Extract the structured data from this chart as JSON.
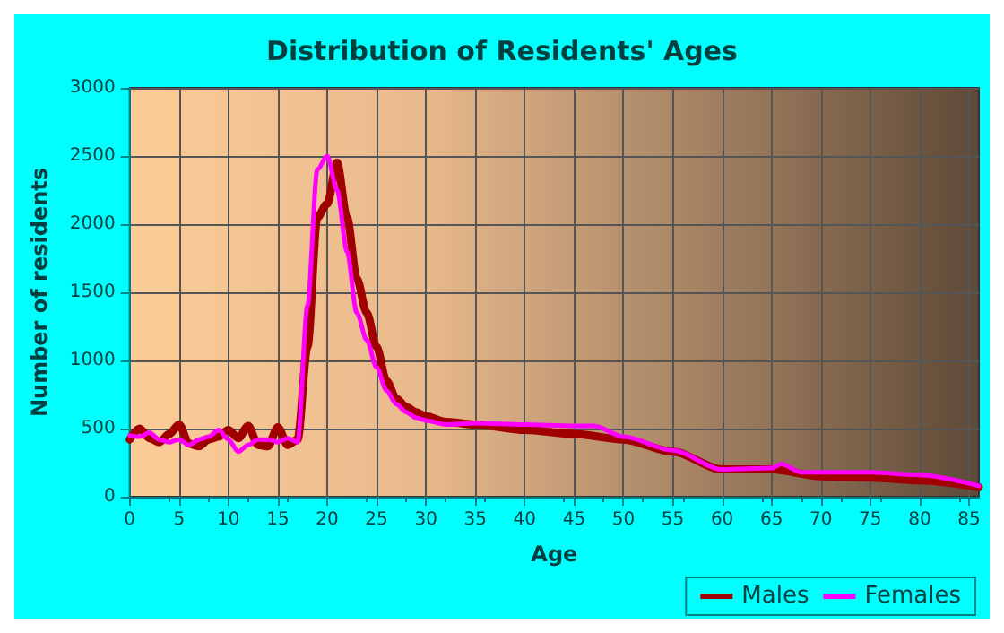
{
  "chart_data": {
    "type": "line",
    "title": "Distribution of Residents' Ages",
    "xlabel": "Age",
    "ylabel": "Number of residents",
    "xlim": [
      0,
      86
    ],
    "xticks": [
      0,
      5,
      10,
      15,
      20,
      25,
      30,
      35,
      40,
      45,
      50,
      55,
      60,
      65,
      70,
      75,
      80,
      85
    ],
    "ylim": [
      0,
      3000
    ],
    "yticks": [
      0,
      500,
      1000,
      1500,
      2000,
      2500,
      3000
    ],
    "grid": true,
    "legend": "bottom right",
    "marker": "none",
    "line_style": "solid",
    "series": [
      {
        "name": "Males",
        "color": "#a00000",
        "x": [
          0,
          1,
          2,
          3,
          4,
          5,
          6,
          7,
          8,
          9,
          10,
          11,
          12,
          13,
          14,
          15,
          16,
          17,
          18,
          19,
          20,
          21,
          22,
          23,
          24,
          25,
          26,
          27,
          28,
          29,
          30,
          32,
          35,
          40,
          45,
          50,
          55,
          60,
          65,
          70,
          75,
          80,
          86
        ],
        "values": [
          420,
          500,
          430,
          400,
          460,
          530,
          390,
          370,
          420,
          440,
          490,
          430,
          520,
          380,
          370,
          510,
          380,
          420,
          1100,
          2050,
          2150,
          2450,
          2050,
          1600,
          1350,
          1100,
          850,
          720,
          660,
          620,
          590,
          550,
          530,
          490,
          460,
          420,
          330,
          200,
          200,
          150,
          140,
          120,
          70
        ]
      },
      {
        "name": "Females",
        "color": "#ff00ff",
        "x": [
          0,
          1,
          2,
          3,
          4,
          5,
          6,
          7,
          8,
          9,
          10,
          11,
          12,
          13,
          14,
          15,
          16,
          17,
          18,
          19,
          20,
          21,
          22,
          23,
          24,
          25,
          26,
          27,
          28,
          29,
          30,
          32,
          35,
          40,
          45,
          47,
          50,
          55,
          60,
          65,
          66,
          68,
          70,
          75,
          80,
          86
        ],
        "values": [
          450,
          440,
          470,
          420,
          400,
          420,
          380,
          420,
          440,
          490,
          420,
          330,
          380,
          420,
          420,
          400,
          430,
          400,
          1400,
          2400,
          2500,
          2250,
          1800,
          1350,
          1150,
          950,
          780,
          680,
          620,
          580,
          560,
          530,
          540,
          530,
          520,
          520,
          440,
          340,
          200,
          210,
          240,
          180,
          180,
          180,
          160,
          80
        ]
      }
    ]
  }
}
